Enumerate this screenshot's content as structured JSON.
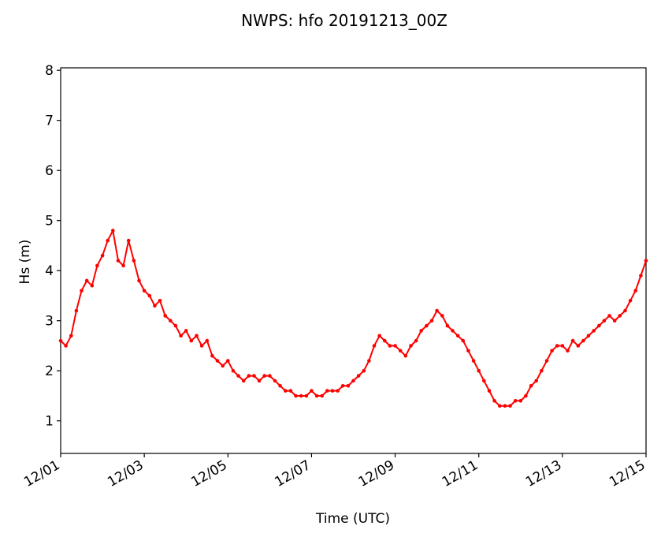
{
  "chart_data": {
    "type": "line",
    "title": "NWPS: hfo 20191213_00Z",
    "xlabel": "Time (UTC)",
    "ylabel": "Hs (m)",
    "xlim": [
      "2019-12-01T00:00",
      "2019-12-15T00:00"
    ],
    "ylim": [
      0.35,
      8.05
    ],
    "xticks": [
      {
        "value": "2019-12-01",
        "label": "12/01"
      },
      {
        "value": "2019-12-03",
        "label": "12/03"
      },
      {
        "value": "2019-12-05",
        "label": "12/05"
      },
      {
        "value": "2019-12-07",
        "label": "12/07"
      },
      {
        "value": "2019-12-09",
        "label": "12/09"
      },
      {
        "value": "2019-12-11",
        "label": "12/11"
      },
      {
        "value": "2019-12-13",
        "label": "12/13"
      },
      {
        "value": "2019-12-15",
        "label": "12/15"
      }
    ],
    "yticks": [
      1,
      2,
      3,
      4,
      5,
      6,
      7,
      8
    ],
    "grid": false,
    "series": [
      {
        "color": "#ff0000",
        "marker": "circle",
        "points": [
          [
            "2019-12-01T00:00",
            2.6
          ],
          [
            "2019-12-01T03:00",
            2.5
          ],
          [
            "2019-12-01T06:00",
            2.7
          ],
          [
            "2019-12-01T09:00",
            3.2
          ],
          [
            "2019-12-01T12:00",
            3.6
          ],
          [
            "2019-12-01T15:00",
            3.8
          ],
          [
            "2019-12-01T18:00",
            3.7
          ],
          [
            "2019-12-01T21:00",
            4.1
          ],
          [
            "2019-12-02T00:00",
            4.3
          ],
          [
            "2019-12-02T03:00",
            4.6
          ],
          [
            "2019-12-02T06:00",
            4.8
          ],
          [
            "2019-12-02T09:00",
            4.2
          ],
          [
            "2019-12-02T12:00",
            4.1
          ],
          [
            "2019-12-02T15:00",
            4.6
          ],
          [
            "2019-12-02T18:00",
            4.2
          ],
          [
            "2019-12-02T21:00",
            3.8
          ],
          [
            "2019-12-03T00:00",
            3.6
          ],
          [
            "2019-12-03T03:00",
            3.5
          ],
          [
            "2019-12-03T06:00",
            3.3
          ],
          [
            "2019-12-03T09:00",
            3.4
          ],
          [
            "2019-12-03T12:00",
            3.1
          ],
          [
            "2019-12-03T15:00",
            3.0
          ],
          [
            "2019-12-03T18:00",
            2.9
          ],
          [
            "2019-12-03T21:00",
            2.7
          ],
          [
            "2019-12-04T00:00",
            2.8
          ],
          [
            "2019-12-04T03:00",
            2.6
          ],
          [
            "2019-12-04T06:00",
            2.7
          ],
          [
            "2019-12-04T09:00",
            2.5
          ],
          [
            "2019-12-04T12:00",
            2.6
          ],
          [
            "2019-12-04T15:00",
            2.3
          ],
          [
            "2019-12-04T18:00",
            2.2
          ],
          [
            "2019-12-04T21:00",
            2.1
          ],
          [
            "2019-12-05T00:00",
            2.2
          ],
          [
            "2019-12-05T03:00",
            2.0
          ],
          [
            "2019-12-05T06:00",
            1.9
          ],
          [
            "2019-12-05T09:00",
            1.8
          ],
          [
            "2019-12-05T12:00",
            1.9
          ],
          [
            "2019-12-05T15:00",
            1.9
          ],
          [
            "2019-12-05T18:00",
            1.8
          ],
          [
            "2019-12-05T21:00",
            1.9
          ],
          [
            "2019-12-06T00:00",
            1.9
          ],
          [
            "2019-12-06T03:00",
            1.8
          ],
          [
            "2019-12-06T06:00",
            1.7
          ],
          [
            "2019-12-06T09:00",
            1.6
          ],
          [
            "2019-12-06T12:00",
            1.6
          ],
          [
            "2019-12-06T15:00",
            1.5
          ],
          [
            "2019-12-06T18:00",
            1.5
          ],
          [
            "2019-12-06T21:00",
            1.5
          ],
          [
            "2019-12-07T00:00",
            1.6
          ],
          [
            "2019-12-07T03:00",
            1.5
          ],
          [
            "2019-12-07T06:00",
            1.5
          ],
          [
            "2019-12-07T09:00",
            1.6
          ],
          [
            "2019-12-07T12:00",
            1.6
          ],
          [
            "2019-12-07T15:00",
            1.6
          ],
          [
            "2019-12-07T18:00",
            1.7
          ],
          [
            "2019-12-07T21:00",
            1.7
          ],
          [
            "2019-12-08T00:00",
            1.8
          ],
          [
            "2019-12-08T03:00",
            1.9
          ],
          [
            "2019-12-08T06:00",
            2.0
          ],
          [
            "2019-12-08T09:00",
            2.2
          ],
          [
            "2019-12-08T12:00",
            2.5
          ],
          [
            "2019-12-08T15:00",
            2.7
          ],
          [
            "2019-12-08T18:00",
            2.6
          ],
          [
            "2019-12-08T21:00",
            2.5
          ],
          [
            "2019-12-09T00:00",
            2.5
          ],
          [
            "2019-12-09T03:00",
            2.4
          ],
          [
            "2019-12-09T06:00",
            2.3
          ],
          [
            "2019-12-09T09:00",
            2.5
          ],
          [
            "2019-12-09T12:00",
            2.6
          ],
          [
            "2019-12-09T15:00",
            2.8
          ],
          [
            "2019-12-09T18:00",
            2.9
          ],
          [
            "2019-12-09T21:00",
            3.0
          ],
          [
            "2019-12-10T00:00",
            3.2
          ],
          [
            "2019-12-10T03:00",
            3.1
          ],
          [
            "2019-12-10T06:00",
            2.9
          ],
          [
            "2019-12-10T09:00",
            2.8
          ],
          [
            "2019-12-10T12:00",
            2.7
          ],
          [
            "2019-12-10T15:00",
            2.6
          ],
          [
            "2019-12-10T18:00",
            2.4
          ],
          [
            "2019-12-10T21:00",
            2.2
          ],
          [
            "2019-12-11T00:00",
            2.0
          ],
          [
            "2019-12-11T03:00",
            1.8
          ],
          [
            "2019-12-11T06:00",
            1.6
          ],
          [
            "2019-12-11T09:00",
            1.4
          ],
          [
            "2019-12-11T12:00",
            1.3
          ],
          [
            "2019-12-11T15:00",
            1.3
          ],
          [
            "2019-12-11T18:00",
            1.3
          ],
          [
            "2019-12-11T21:00",
            1.4
          ],
          [
            "2019-12-12T00:00",
            1.4
          ],
          [
            "2019-12-12T03:00",
            1.5
          ],
          [
            "2019-12-12T06:00",
            1.7
          ],
          [
            "2019-12-12T09:00",
            1.8
          ],
          [
            "2019-12-12T12:00",
            2.0
          ],
          [
            "2019-12-12T15:00",
            2.2
          ],
          [
            "2019-12-12T18:00",
            2.4
          ],
          [
            "2019-12-12T21:00",
            2.5
          ],
          [
            "2019-12-13T00:00",
            2.5
          ],
          [
            "2019-12-13T03:00",
            2.4
          ],
          [
            "2019-12-13T06:00",
            2.6
          ],
          [
            "2019-12-13T09:00",
            2.5
          ],
          [
            "2019-12-13T12:00",
            2.6
          ],
          [
            "2019-12-13T15:00",
            2.7
          ],
          [
            "2019-12-13T18:00",
            2.8
          ],
          [
            "2019-12-13T21:00",
            2.9
          ],
          [
            "2019-12-14T00:00",
            3.0
          ],
          [
            "2019-12-14T03:00",
            3.1
          ],
          [
            "2019-12-14T06:00",
            3.0
          ],
          [
            "2019-12-14T09:00",
            3.1
          ],
          [
            "2019-12-14T12:00",
            3.2
          ],
          [
            "2019-12-14T15:00",
            3.4
          ],
          [
            "2019-12-14T18:00",
            3.6
          ],
          [
            "2019-12-14T21:00",
            3.9
          ],
          [
            "2019-12-15T00:00",
            4.2
          ]
        ]
      }
    ]
  }
}
